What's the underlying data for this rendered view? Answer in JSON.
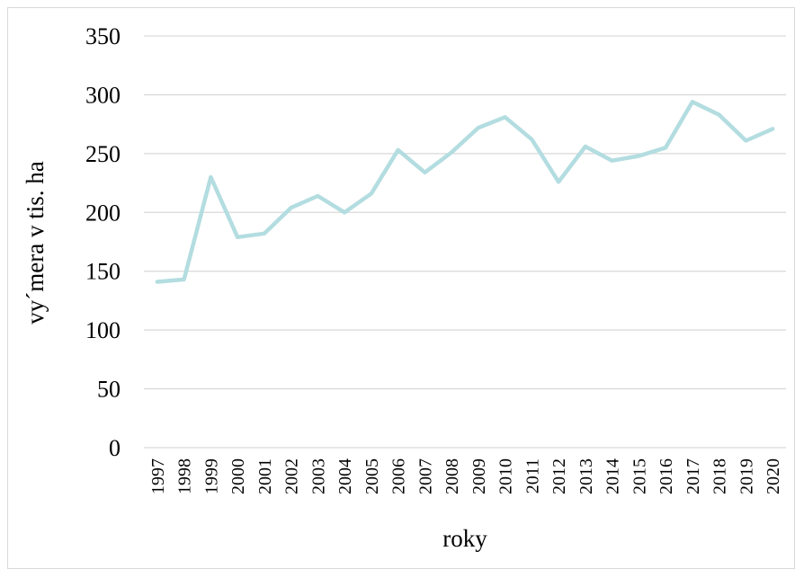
{
  "chart_data": {
    "type": "line",
    "title": "",
    "xlabel": "roky",
    "ylabel": "vy´mera v tis. ha",
    "ylim": [
      0,
      350
    ],
    "yticks": [
      0,
      50,
      100,
      150,
      200,
      250,
      300,
      350
    ],
    "grid": true,
    "legend": "none",
    "categories": [
      "1997",
      "1998",
      "1999",
      "2000",
      "2001",
      "2002",
      "2003",
      "2004",
      "2005",
      "2006",
      "2007",
      "2008",
      "2009",
      "2010",
      "2011",
      "2012",
      "2013",
      "2014",
      "2015",
      "2016",
      "2017",
      "2018",
      "2019",
      "2020"
    ],
    "series": [
      {
        "color": "#b3dde0",
        "values": [
          141,
          143,
          230,
          179,
          182,
          204,
          214,
          200,
          216,
          253,
          234,
          251,
          272,
          281,
          262,
          226,
          256,
          244,
          248,
          255,
          294,
          283,
          261,
          271
        ]
      }
    ]
  }
}
